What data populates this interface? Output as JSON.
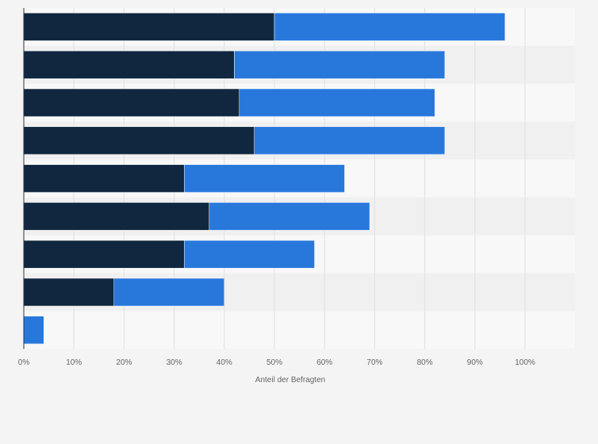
{
  "chart_data": {
    "type": "bar",
    "orientation": "horizontal",
    "stacked": true,
    "categories": [
      "",
      "",
      "",
      "",
      "",
      "",
      "",
      "",
      ""
    ],
    "series": [
      {
        "values": [
          50,
          42,
          43,
          46,
          32,
          37,
          32,
          18,
          0
        ],
        "color": "#10273f"
      },
      {
        "values": [
          46,
          42,
          39,
          38,
          32,
          32,
          26,
          22,
          4
        ],
        "color": "#2878dc"
      }
    ],
    "xlim": [
      0,
      110
    ],
    "x_ticks": [
      "0%",
      "10%",
      "20%",
      "30%",
      "40%",
      "50%",
      "60%",
      "70%",
      "80%",
      "90%",
      "100%"
    ],
    "xlabel": "Anteil der Befragten",
    "grid": true,
    "legend": "none"
  },
  "colors": {
    "background": "#f4f4f4",
    "plot_band_light": "#f8f8f8",
    "plot_band_dark": "#f0f0f0",
    "gridline": "#e0e0e0",
    "axis_line": "#333333"
  }
}
